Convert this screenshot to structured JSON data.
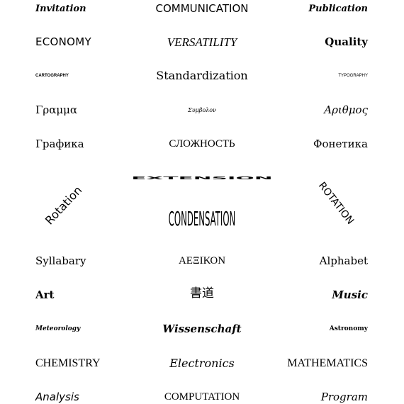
{
  "words": {
    "invitation": "Invitation",
    "communication": "COMMUNICATION",
    "publication": "Publication",
    "economy": "ECONOMY",
    "versatility": "VERSATILITY",
    "quality": "Quality",
    "cartography": "CARTOGRAPHY",
    "standardization": "Standardization",
    "typography": "TYPOGRAPHY",
    "gramma": "Γραμμα",
    "symbolon": "Συμβολον",
    "arithmos": "Αριθμος",
    "grafika": "Графика",
    "slozhnost": "СЛОЖНОСТЬ",
    "fonetika": "Фонетика",
    "extension": "EXTENSION",
    "rotation_left": "Rotation",
    "rotation_right": "ROTATION",
    "condensation": "CONDENSATION",
    "syllabary": "Syllabary",
    "aeeikon": "ΑΕΞΙΚΟΝ",
    "alphabet": "Alphabet",
    "art": "Art",
    "shodo": "書道",
    "music": "Music",
    "meteorology": "Meteorology",
    "wissenschaft": "Wissenschaft",
    "astronomy": "Astronomy",
    "chemistry": "CHEMISTRY",
    "electronics": "Electronics",
    "mathematics": "MATHEMATICS",
    "analysis": "Analysis",
    "computation": "COMPUTATION",
    "program": "Program"
  }
}
